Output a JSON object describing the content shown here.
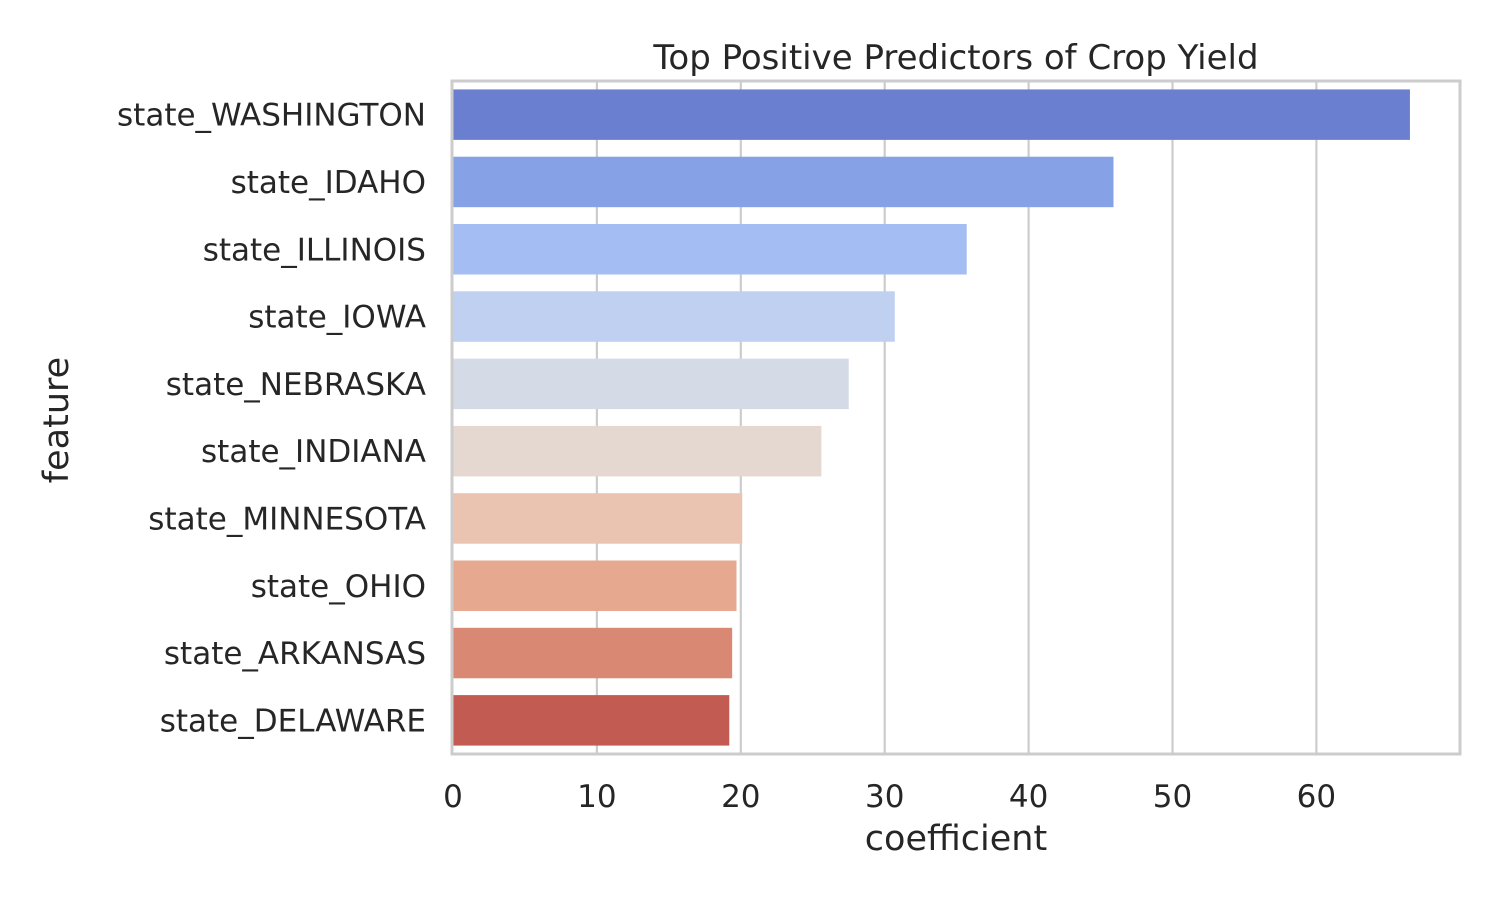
{
  "chart_data": {
    "type": "bar",
    "orientation": "horizontal",
    "title": "Top Positive Predictors of Crop Yield",
    "xlabel": "coefficient",
    "ylabel": "feature",
    "xlim": [
      0,
      70
    ],
    "xticks": [
      0,
      10,
      20,
      30,
      40,
      50,
      60
    ],
    "grid": true,
    "categories": [
      "state_WASHINGTON",
      "state_IDAHO",
      "state_ILLINOIS",
      "state_IOWA",
      "state_NEBRASKA",
      "state_INDIANA",
      "state_MINNESOTA",
      "state_OHIO",
      "state_ARKANSAS",
      "state_DELAWARE"
    ],
    "values": [
      66.5,
      45.9,
      35.7,
      30.7,
      27.5,
      25.6,
      20.1,
      19.7,
      19.4,
      19.2
    ],
    "colors": [
      "#6b7fd1",
      "#86a1e6",
      "#a4bdf3",
      "#bfd0f1",
      "#d5dbe6",
      "#e5d8d0",
      "#eac4b1",
      "#e6a88f",
      "#d98873",
      "#c25b52"
    ]
  }
}
